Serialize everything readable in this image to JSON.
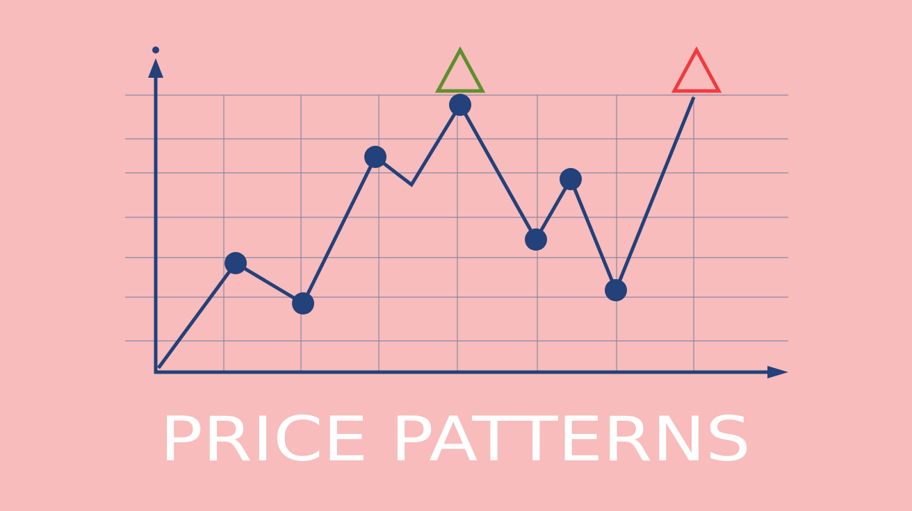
{
  "title": "PRICE PATTERNS"
}
